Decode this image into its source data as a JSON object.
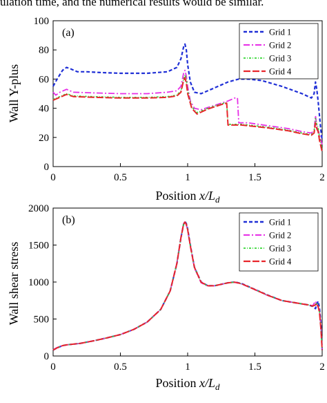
{
  "top_text": "ulation time, and the numerical results would be similar.",
  "colors": {
    "grid1": "#1f2fd6",
    "grid2": "#e62ee6",
    "grid3": "#33d633",
    "grid4": "#e8252b"
  },
  "chart_data": [
    {
      "type": "line",
      "panel_label": "(a)",
      "xlabel": "Position x/L_d",
      "xlabel_text": "Position ",
      "xlabel_math": "x/L",
      "xlabel_sub": "d",
      "ylabel": "Wall Y-plus",
      "xlim": [
        0,
        2
      ],
      "ylim": [
        0,
        100
      ],
      "xticks": [
        "0",
        "0.5",
        "1",
        "1.5",
        "2"
      ],
      "yticks": [
        "0",
        "20",
        "40",
        "60",
        "80",
        "100"
      ],
      "grid": false,
      "legend_position": "top-right",
      "series": [
        {
          "name": "Grid 1",
          "x": [
            0,
            0.03,
            0.07,
            0.1,
            0.13,
            0.18,
            0.25,
            0.35,
            0.5,
            0.7,
            0.85,
            0.92,
            0.95,
            0.97,
            0.98,
            0.99,
            1.0,
            1.02,
            1.05,
            1.1,
            1.15,
            1.2,
            1.3,
            1.38,
            1.45,
            1.55,
            1.7,
            1.85,
            1.92,
            1.94,
            1.95,
            1.96,
            1.97,
            1.98,
            1.99,
            2.0
          ],
          "y": [
            55,
            60,
            66,
            68,
            67,
            65,
            65,
            64.5,
            64,
            64,
            65,
            68,
            74,
            82,
            84,
            80,
            70,
            58,
            51,
            50,
            52,
            54,
            58,
            60,
            60,
            59,
            55,
            50,
            47,
            50,
            58,
            53,
            45,
            35,
            25,
            18
          ]
        },
        {
          "name": "Grid 2",
          "x": [
            0,
            0.02,
            0.05,
            0.1,
            0.15,
            0.3,
            0.5,
            0.7,
            0.85,
            0.92,
            0.95,
            0.97,
            0.98,
            0.99,
            1.0,
            1.02,
            1.05,
            1.1,
            1.2,
            1.3,
            1.35,
            1.37,
            1.38,
            1.45,
            1.6,
            1.75,
            1.85,
            1.92,
            1.94,
            1.95,
            1.96,
            1.98,
            2.0
          ],
          "y": [
            51,
            49,
            51,
            53,
            51,
            50.5,
            50,
            50,
            51,
            52,
            55,
            64,
            66,
            62,
            55,
            45,
            40,
            39,
            42,
            45,
            47,
            47,
            30,
            30,
            28,
            26,
            24,
            23,
            25,
            35,
            28,
            22,
            15
          ]
        },
        {
          "name": "Grid 3",
          "x": [
            0,
            0.05,
            0.1,
            0.15,
            0.3,
            0.5,
            0.7,
            0.85,
            0.92,
            0.95,
            0.97,
            0.98,
            0.99,
            1.0,
            1.03,
            1.07,
            1.15,
            1.25,
            1.29,
            1.3,
            1.4,
            1.6,
            1.75,
            1.85,
            1.92,
            1.94,
            1.95,
            1.96,
            1.97,
            1.98,
            2.0
          ],
          "y": [
            46,
            48,
            50,
            48.5,
            48,
            47.5,
            47.5,
            48,
            49,
            52,
            60,
            63,
            60,
            52,
            41,
            37,
            40,
            43,
            44,
            29,
            29,
            27,
            25,
            23,
            22,
            24,
            33,
            29,
            27,
            20,
            12
          ]
        },
        {
          "name": "Grid 4",
          "x": [
            0,
            0.05,
            0.1,
            0.15,
            0.3,
            0.5,
            0.7,
            0.85,
            0.92,
            0.95,
            0.97,
            0.98,
            0.99,
            1.0,
            1.03,
            1.07,
            1.15,
            1.25,
            1.29,
            1.3,
            1.4,
            1.6,
            1.75,
            1.85,
            1.92,
            1.94,
            1.95,
            1.96,
            1.97,
            1.98,
            2.0
          ],
          "y": [
            45.5,
            47.5,
            49.5,
            48,
            47.5,
            47,
            47,
            47.5,
            48.5,
            51,
            59,
            61,
            57,
            50,
            40,
            36,
            39.5,
            42.5,
            43.5,
            28.5,
            28.5,
            26.5,
            24.5,
            22.5,
            21.5,
            23,
            30,
            26,
            24,
            18,
            10
          ]
        }
      ]
    },
    {
      "type": "line",
      "panel_label": "(b)",
      "xlabel": "Position x/L_d",
      "xlabel_text": "Position ",
      "xlabel_math": "x/L",
      "xlabel_sub": "d",
      "ylabel": "Wall shear stress",
      "xlim": [
        0,
        2
      ],
      "ylim": [
        0,
        2000
      ],
      "xticks": [
        "0",
        "0.5",
        "1",
        "1.5",
        "2"
      ],
      "yticks": [
        "0",
        "500",
        "1000",
        "1500",
        "2000"
      ],
      "grid": false,
      "legend_position": "top-right",
      "series": [
        {
          "name": "Grid 1",
          "x": [
            0,
            0.03,
            0.07,
            0.1,
            0.2,
            0.3,
            0.4,
            0.5,
            0.6,
            0.7,
            0.8,
            0.87,
            0.92,
            0.95,
            0.97,
            0.98,
            0.99,
            1.0,
            1.02,
            1.05,
            1.1,
            1.15,
            1.2,
            1.3,
            1.35,
            1.4,
            1.5,
            1.6,
            1.7,
            1.8,
            1.9,
            1.93,
            1.95,
            1.96,
            1.97,
            1.98,
            1.99,
            2.0
          ],
          "y": [
            80,
            110,
            140,
            150,
            170,
            205,
            245,
            290,
            360,
            460,
            630,
            880,
            1250,
            1600,
            1780,
            1820,
            1790,
            1720,
            1500,
            1200,
            1000,
            950,
            950,
            990,
            1000,
            980,
            900,
            820,
            750,
            720,
            690,
            670,
            640,
            700,
            740,
            650,
            450,
            80
          ]
        },
        {
          "name": "Grid 2",
          "x": [
            0,
            0.03,
            0.07,
            0.1,
            0.2,
            0.3,
            0.4,
            0.5,
            0.6,
            0.7,
            0.8,
            0.87,
            0.92,
            0.95,
            0.97,
            0.98,
            0.99,
            1.0,
            1.02,
            1.05,
            1.1,
            1.15,
            1.2,
            1.3,
            1.35,
            1.4,
            1.5,
            1.6,
            1.7,
            1.8,
            1.9,
            1.93,
            1.95,
            1.96,
            1.97,
            1.98,
            1.99,
            2.0
          ],
          "y": [
            85,
            115,
            140,
            150,
            170,
            205,
            245,
            290,
            360,
            460,
            630,
            880,
            1260,
            1610,
            1790,
            1820,
            1770,
            1700,
            1480,
            1190,
            990,
            945,
            950,
            990,
            995,
            975,
            895,
            815,
            750,
            720,
            690,
            680,
            740,
            700,
            660,
            620,
            400,
            80
          ]
        },
        {
          "name": "Grid 3",
          "x": [
            0,
            0.03,
            0.07,
            0.1,
            0.2,
            0.3,
            0.4,
            0.5,
            0.6,
            0.7,
            0.8,
            0.87,
            0.92,
            0.95,
            0.97,
            0.98,
            0.99,
            1.0,
            1.02,
            1.05,
            1.1,
            1.15,
            1.2,
            1.3,
            1.35,
            1.4,
            1.5,
            1.6,
            1.7,
            1.8,
            1.9,
            1.93,
            1.95,
            1.96,
            1.97,
            1.98,
            1.99,
            2.0
          ],
          "y": [
            82,
            112,
            140,
            150,
            170,
            205,
            245,
            290,
            360,
            460,
            630,
            880,
            1255,
            1605,
            1785,
            1815,
            1775,
            1705,
            1485,
            1195,
            995,
            948,
            950,
            990,
            997,
            977,
            897,
            817,
            750,
            720,
            690,
            670,
            700,
            720,
            680,
            600,
            380,
            80
          ]
        },
        {
          "name": "Grid 4",
          "x": [
            0,
            0.03,
            0.07,
            0.1,
            0.2,
            0.3,
            0.4,
            0.5,
            0.6,
            0.7,
            0.8,
            0.87,
            0.92,
            0.95,
            0.97,
            0.98,
            0.99,
            1.0,
            1.02,
            1.05,
            1.1,
            1.15,
            1.2,
            1.3,
            1.35,
            1.4,
            1.5,
            1.6,
            1.7,
            1.8,
            1.9,
            1.93,
            1.95,
            1.96,
            1.97,
            1.98,
            1.99,
            2.0
          ],
          "y": [
            80,
            110,
            140,
            150,
            170,
            205,
            245,
            290,
            360,
            460,
            630,
            880,
            1250,
            1600,
            1780,
            1810,
            1780,
            1710,
            1490,
            1200,
            998,
            950,
            950,
            990,
            998,
            978,
            898,
            818,
            750,
            720,
            690,
            675,
            690,
            710,
            670,
            590,
            370,
            80
          ]
        }
      ]
    }
  ]
}
